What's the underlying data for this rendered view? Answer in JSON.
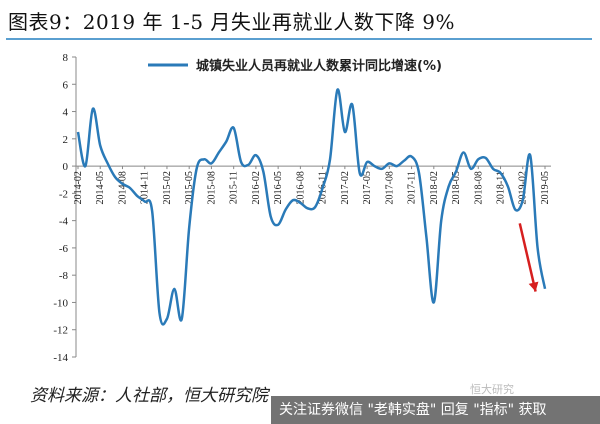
{
  "title": "图表9：2019 年 1-5 月失业再就业人数下降 9%",
  "source": "资料来源：人社部，恒大研究院",
  "watermark": {
    "bar_text": "关注证券微信 \"老韩实盘\" 回复 \"指标\" 获取",
    "corner_text": "恒大研究"
  },
  "colors": {
    "series": "#2a7ab8",
    "arrow": "#d61f1f",
    "rule": "#5a9fd0"
  },
  "chart_data": {
    "type": "line",
    "title": "图表9：2019 年 1-5 月失业再就业人数下降 9%",
    "ylim": [
      -14,
      8
    ],
    "yticks": [
      8,
      6,
      4,
      2,
      0,
      -2,
      -4,
      -6,
      -8,
      -10,
      -12,
      -14
    ],
    "xticks": [
      "2014-02",
      "2014-05",
      "2014-08",
      "2014-11",
      "2015-02",
      "2015-05",
      "2015-08",
      "2015-11",
      "2016-02",
      "2016-05",
      "2016-08",
      "2016-11",
      "2017-02",
      "2017-05",
      "2017-08",
      "2017-11",
      "2018-02",
      "2018-05",
      "2018-08",
      "2018-11",
      "2019-02",
      "2019-05"
    ],
    "grid": false,
    "legend_position": "top",
    "annotation": "red downward arrow near 2019-02 to 2019-05",
    "series": [
      {
        "name": "城镇失业人员再就业人数累计同比增速(%)",
        "x": [
          "2014-02",
          "2014-03",
          "2014-04",
          "2014-05",
          "2014-06",
          "2014-07",
          "2014-08",
          "2014-09",
          "2014-10",
          "2014-11",
          "2014-12",
          "2015-01",
          "2015-02",
          "2015-03",
          "2015-04",
          "2015-05",
          "2015-06",
          "2015-07",
          "2015-08",
          "2015-09",
          "2015-10",
          "2015-11",
          "2015-12",
          "2016-01",
          "2016-02",
          "2016-03",
          "2016-04",
          "2016-05",
          "2016-06",
          "2016-07",
          "2016-08",
          "2016-09",
          "2016-10",
          "2016-11",
          "2016-12",
          "2017-01",
          "2017-02",
          "2017-03",
          "2017-04",
          "2017-05",
          "2017-06",
          "2017-07",
          "2017-08",
          "2017-09",
          "2017-10",
          "2017-11",
          "2017-12",
          "2018-01",
          "2018-02",
          "2018-03",
          "2018-04",
          "2018-05",
          "2018-06",
          "2018-07",
          "2018-08",
          "2018-09",
          "2018-10",
          "2018-11",
          "2018-12",
          "2019-01",
          "2019-02",
          "2019-03",
          "2019-04",
          "2019-05"
        ],
        "values": [
          2.5,
          0,
          4.2,
          1.5,
          0.2,
          -0.8,
          -1.3,
          -1.6,
          -2.2,
          -2.6,
          -3.3,
          -10.8,
          -11.2,
          -9.0,
          -11.2,
          -4.5,
          -0.2,
          0.5,
          0.2,
          1.0,
          1.8,
          2.8,
          0.3,
          0.1,
          0.8,
          -0.4,
          -3.7,
          -4.3,
          -3.2,
          -2.5,
          -2.7,
          -3.1,
          -3.0,
          -1.6,
          0.5,
          5.6,
          2.5,
          4.5,
          -0.5,
          0.3,
          0.0,
          -0.2,
          0.2,
          0.0,
          0.4,
          0.7,
          -0.5,
          -5.2,
          -10.0,
          -4.0,
          -1.5,
          -0.4,
          1.0,
          -0.2,
          0.5,
          0.6,
          -0.2,
          -0.5,
          -1.5,
          -3.2,
          -2.5,
          0.8,
          -6.0,
          -9.0
        ]
      }
    ]
  }
}
